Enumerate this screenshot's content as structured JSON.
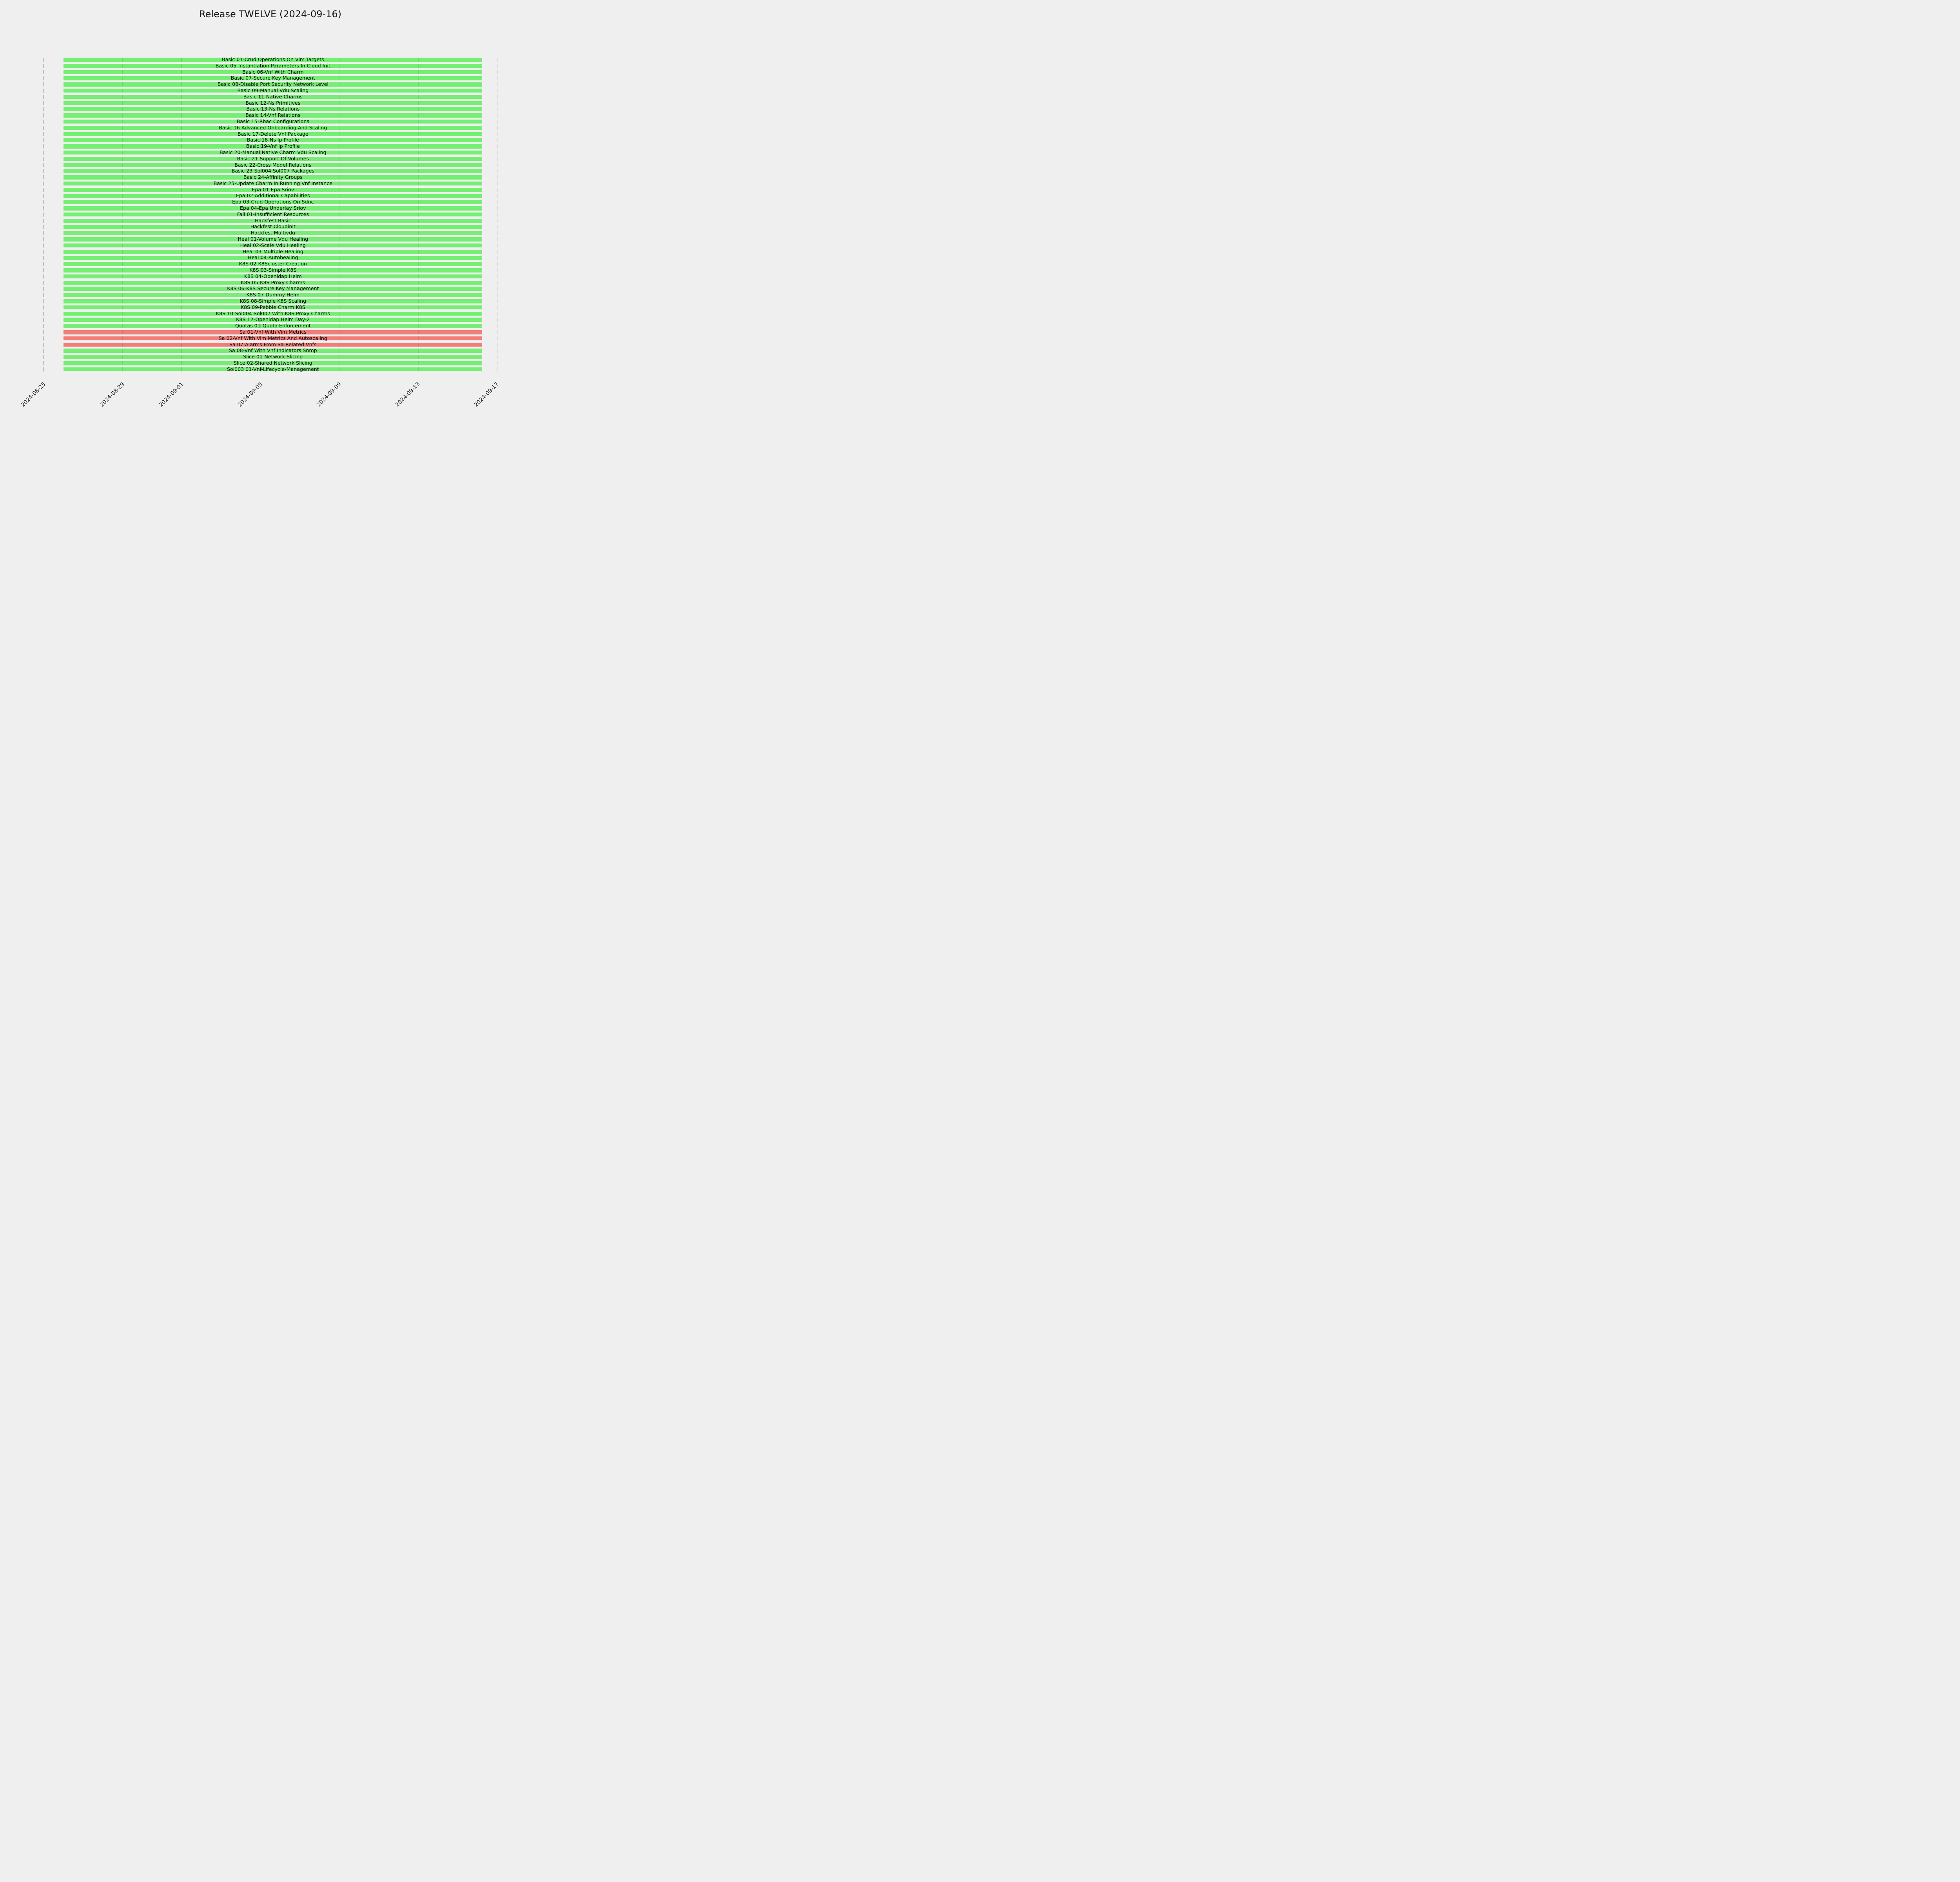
{
  "title": "Release TWELVE (2024-09-16)",
  "colors": {
    "background": "#efefef",
    "pass": "#74ef72",
    "fail": "#f27d78",
    "grid_outer": "#c3c3c3",
    "text": "#141414"
  },
  "chart_data": {
    "type": "bar",
    "subtype": "gantt",
    "title": "Release TWELVE (2024-09-16)",
    "orientation": "horizontal",
    "grid": "dashed vertical lines at date ticks",
    "legend_position": "none",
    "x_ticks": [
      "2024-08-25",
      "2024-08-29",
      "2024-09-01",
      "2024-09-05",
      "2024-09-09",
      "2024-09-13",
      "2024-09-17"
    ],
    "x_tick_rotation_deg": 45,
    "x_range": [
      "2024-08-25",
      "2024-09-17"
    ],
    "bars_start": "2024-08-26",
    "bars_end": "2024-09-16",
    "status_color_map": {
      "pass": "#74ef72",
      "fail": "#f27d78"
    },
    "tasks": [
      {
        "name": "Basic 01-Crud Operations On Vim Targets",
        "status": "pass"
      },
      {
        "name": "Basic 05-Instantiation Parameters In Cloud Init",
        "status": "pass"
      },
      {
        "name": "Basic 06-Vnf With Charm",
        "status": "pass"
      },
      {
        "name": "Basic 07-Secure Key Management",
        "status": "pass"
      },
      {
        "name": "Basic 08-Disable Port Security Network Level",
        "status": "pass"
      },
      {
        "name": "Basic 09-Manual Vdu Scaling",
        "status": "pass"
      },
      {
        "name": "Basic 11-Native Charms",
        "status": "pass"
      },
      {
        "name": "Basic 12-Ns Primitives",
        "status": "pass"
      },
      {
        "name": "Basic 13-Ns Relations",
        "status": "pass"
      },
      {
        "name": "Basic 14-Vnf Relations",
        "status": "pass"
      },
      {
        "name": "Basic 15-Rbac Configurations",
        "status": "pass"
      },
      {
        "name": "Basic 16-Advanced Onboarding And Scaling",
        "status": "pass"
      },
      {
        "name": "Basic 17-Delete Vnf Package",
        "status": "pass"
      },
      {
        "name": "Basic 18-Ns Ip Profile",
        "status": "pass"
      },
      {
        "name": "Basic 19-Vnf Ip Profile",
        "status": "pass"
      },
      {
        "name": "Basic 20-Manual Native Charm Vdu Scaling",
        "status": "pass"
      },
      {
        "name": "Basic 21-Support Of Volumes",
        "status": "pass"
      },
      {
        "name": "Basic 22-Cross Model Relations",
        "status": "pass"
      },
      {
        "name": "Basic 23-Sol004 Sol007 Packages",
        "status": "pass"
      },
      {
        "name": "Basic 24-Affinity Groups",
        "status": "pass"
      },
      {
        "name": "Basic 25-Update Charm In Running Vnf Instance",
        "status": "pass"
      },
      {
        "name": "Epa 01-Epa Sriov",
        "status": "pass"
      },
      {
        "name": "Epa 02-Additional Capabilities",
        "status": "pass"
      },
      {
        "name": "Epa 03-Crud Operations On Sdnc",
        "status": "pass"
      },
      {
        "name": "Epa 04-Epa Underlay Sriov",
        "status": "pass"
      },
      {
        "name": "Fail 01-Insufficient Resources",
        "status": "pass"
      },
      {
        "name": "Hackfest Basic",
        "status": "pass"
      },
      {
        "name": "Hackfest Cloudinit",
        "status": "pass"
      },
      {
        "name": "Hackfest Multivdu",
        "status": "pass"
      },
      {
        "name": "Heal 01-Volume Vdu Healing",
        "status": "pass"
      },
      {
        "name": "Heal 02-Scale Vdu Healing",
        "status": "pass"
      },
      {
        "name": "Heal 03-Multiple Healing",
        "status": "pass"
      },
      {
        "name": "Heal 04-Autohealing",
        "status": "pass"
      },
      {
        "name": "K8S 02-K8Scluster Creation",
        "status": "pass"
      },
      {
        "name": "K8S 03-Simple K8S",
        "status": "pass"
      },
      {
        "name": "K8S 04-Openldap Helm",
        "status": "pass"
      },
      {
        "name": "K8S 05-K8S Proxy Charms",
        "status": "pass"
      },
      {
        "name": "K8S 06-K8S Secure Key Management",
        "status": "pass"
      },
      {
        "name": "K8S 07-Dummy Helm",
        "status": "pass"
      },
      {
        "name": "K8S 08-Simple K8S Scaling",
        "status": "pass"
      },
      {
        "name": "K8S 09-Pebble Charm K8S",
        "status": "pass"
      },
      {
        "name": "K8S 10-Sol004 Sol007 With K8S Proxy Charms",
        "status": "pass"
      },
      {
        "name": "K8S 12-Openldap Helm Day-2",
        "status": "pass"
      },
      {
        "name": "Quotas 01-Quota Enforcement",
        "status": "pass"
      },
      {
        "name": "Sa 01-Vnf With Vim Metrics",
        "status": "fail"
      },
      {
        "name": "Sa 02-Vnf With Vim Metrics And Autoscaling",
        "status": "fail"
      },
      {
        "name": "Sa 07-Alarms From Sa-Related Vnfs",
        "status": "fail"
      },
      {
        "name": "Sa 08-Vnf With Vnf Indicators Snmp",
        "status": "pass"
      },
      {
        "name": "Slice 01-Network Slicing",
        "status": "pass"
      },
      {
        "name": "Slice 02-Shared Network Slicing",
        "status": "pass"
      },
      {
        "name": "Sol003 01-Vnf-Lifecycle-Management",
        "status": "pass"
      }
    ]
  }
}
